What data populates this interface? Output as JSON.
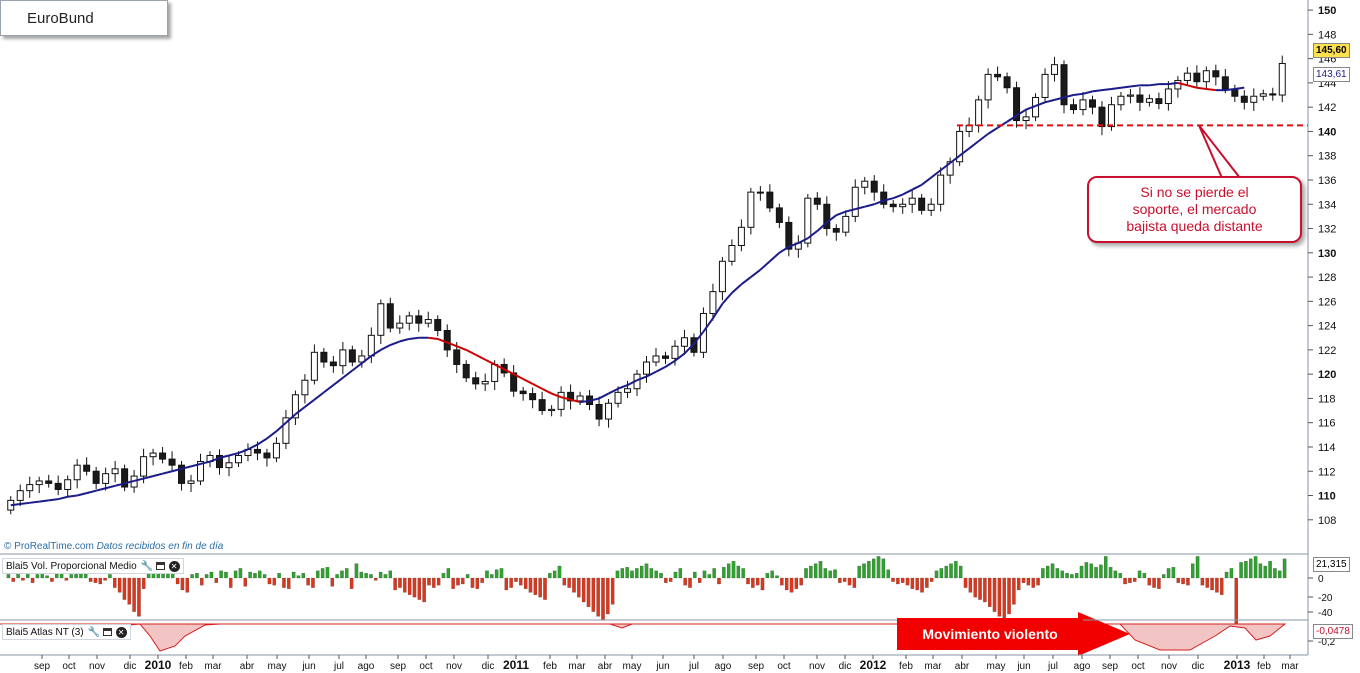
{
  "chart_data": [
    {
      "type": "candlestick",
      "title": "EuroBund",
      "yticks": [
        "108",
        "110",
        "112",
        "114",
        "116",
        "118",
        "120",
        "122",
        "124",
        "126",
        "128",
        "130",
        "132",
        "134",
        "136",
        "138",
        "140",
        "142",
        "144",
        "146",
        "148",
        "150"
      ],
      "major_yticks": [
        "110",
        "120",
        "130",
        "140",
        "150"
      ],
      "ylim": [
        106.5,
        150.5
      ],
      "last_price": "145,60",
      "average_value": "143,61",
      "support_level": 140.5,
      "annotation": "Si no se pierde el\nsoporte, el mercado\nbajista queda distante",
      "series": [
        {
          "name": "",
          "type": "candlestick",
          "closes": [
            109.6,
            110.4,
            110.9,
            111.2,
            111.0,
            110.5,
            111.3,
            112.5,
            112.0,
            111.0,
            111.8,
            112.2,
            110.7,
            111.6,
            113.2,
            113.5,
            113.0,
            112.5,
            111.0,
            111.2,
            112.8,
            113.3,
            112.3,
            112.7,
            113.3,
            113.8,
            113.5,
            113.1,
            114.3,
            116.4,
            118.3,
            119.5,
            121.8,
            121.0,
            120.7,
            122.0,
            121.0,
            121.5,
            123.2,
            125.8,
            123.8,
            124.2,
            124.8,
            124.2,
            124.5,
            123.6,
            122.0,
            120.8,
            119.7,
            119.2,
            119.4,
            120.8,
            120.1,
            118.6,
            118.4,
            117.9,
            117.0,
            117.1,
            118.5,
            117.8,
            118.2,
            117.5,
            116.3,
            117.6,
            118.5,
            118.8,
            120.0,
            121.0,
            121.5,
            121.3,
            122.3,
            123.0,
            121.8,
            125.0,
            126.8,
            129.3,
            130.6,
            132.1,
            135.0,
            135.0,
            133.7,
            132.5,
            130.3,
            130.8,
            134.5,
            134.0,
            132.0,
            131.7,
            133.0,
            135.4,
            135.9,
            135.0,
            134.0,
            133.8,
            134.0,
            134.5,
            133.5,
            134.0,
            136.4,
            137.5,
            140.0,
            140.5,
            142.6,
            144.7,
            144.5,
            143.6,
            140.9,
            141.2,
            142.8,
            144.7,
            145.5,
            142.2,
            141.8,
            142.6,
            142.0,
            140.4,
            142.2,
            142.9,
            143.0,
            142.4,
            142.7,
            142.3,
            143.5,
            144.2,
            144.8,
            144.1,
            145.0,
            144.5,
            143.5,
            142.9,
            142.4,
            142.9,
            143.1,
            143.0,
            145.6
          ]
        },
        {
          "name": "",
          "type": "moving_average",
          "values": [
            109.2,
            109.3,
            109.4,
            109.5,
            109.6,
            109.7,
            109.9,
            110.0,
            110.2,
            110.4,
            110.6,
            110.8,
            111.0,
            111.2,
            111.4,
            111.6,
            111.8,
            112.0,
            112.2,
            112.4,
            112.6,
            112.8,
            113.1,
            113.3,
            113.5,
            113.8,
            114.2,
            114.7,
            115.3,
            116.0,
            116.7,
            117.3,
            117.9,
            118.5,
            119.1,
            119.7,
            120.3,
            120.9,
            121.5,
            122.0,
            122.4,
            122.7,
            122.9,
            123.0,
            123.0,
            122.9,
            122.6,
            122.3,
            122.0,
            121.6,
            121.2,
            120.8,
            120.4,
            120.0,
            119.6,
            119.2,
            118.8,
            118.4,
            118.1,
            117.9,
            117.7,
            117.8,
            118.0,
            118.4,
            118.8,
            119.1,
            119.5,
            119.8,
            120.2,
            120.6,
            121.1,
            121.7,
            122.5,
            123.5,
            124.6,
            125.8,
            126.7,
            127.4,
            128.0,
            128.6,
            129.3,
            130.0,
            130.5,
            130.8,
            131.2,
            131.8,
            132.5,
            133.1,
            133.4,
            133.6,
            133.8,
            134.0,
            134.3,
            134.5,
            134.8,
            135.2,
            135.6,
            136.2,
            136.8,
            137.4,
            138.0,
            138.6,
            139.2,
            139.8,
            140.3,
            140.8,
            141.3,
            141.8,
            142.1,
            142.4,
            142.6,
            142.8,
            143.0,
            143.1,
            143.3,
            143.4,
            143.5,
            143.6,
            143.7,
            143.8,
            143.8,
            143.9,
            143.9,
            144.0,
            143.8,
            143.6,
            143.5,
            143.4,
            143.4,
            143.5,
            143.61
          ]
        }
      ]
    },
    {
      "type": "bar",
      "title": "Blai5 Vol. Proporcional Medio",
      "last_value": "21,315",
      "yticks": [
        "0",
        "-20",
        "-40"
      ],
      "values": [
        3,
        -3,
        4,
        -2,
        5,
        -4,
        3,
        6,
        2,
        -3,
        4,
        5,
        -2,
        3,
        6,
        4,
        5,
        -3,
        -4,
        -5,
        -2,
        3,
        -8,
        -12,
        -18,
        -22,
        -28,
        -32,
        -9,
        4,
        6,
        8,
        9,
        10,
        6,
        -5,
        -10,
        -12,
        3,
        4,
        -6,
        3,
        5,
        -4,
        6,
        5,
        -8,
        6,
        8,
        -7,
        5,
        4,
        6,
        3,
        -5,
        -6,
        4,
        -8,
        -9,
        5,
        2,
        4,
        -6,
        -8,
        6,
        8,
        9,
        -7,
        3,
        6,
        8,
        -9,
        12,
        5,
        4,
        3,
        -2,
        5,
        3,
        6,
        -10,
        -8,
        -12,
        -14,
        -16,
        -18,
        -20,
        -6,
        -8,
        -6,
        4,
        8,
        -9,
        -6,
        -5,
        3,
        -8,
        -9,
        -4,
        6,
        3,
        7,
        8,
        -10,
        -8,
        -3,
        -6,
        -9,
        -12,
        -14,
        -16,
        -18,
        4,
        6,
        10,
        -6,
        -8,
        -12,
        -16,
        -20,
        -24,
        -28,
        -32,
        -35,
        -30,
        -22,
        6,
        8,
        9,
        6,
        8,
        10,
        12,
        8,
        6,
        4,
        -4,
        -3,
        5,
        8,
        -6,
        -8,
        5,
        -4,
        6,
        3,
        8,
        -5,
        9,
        12,
        14,
        10,
        8,
        -5,
        -8,
        -6,
        -10,
        4,
        6,
        2,
        -6,
        -10,
        -12,
        -9,
        -6,
        8,
        10,
        12,
        14,
        8,
        6,
        7,
        -4,
        -3,
        -6,
        -8,
        10,
        12,
        14,
        16,
        18,
        16,
        7,
        -3,
        -5,
        -4,
        -6,
        -9,
        -10,
        -12,
        -8,
        -3,
        6,
        8,
        10,
        12,
        14,
        10,
        -8,
        -12,
        -16,
        -18,
        -20,
        -24,
        -28,
        -32,
        -35,
        -30,
        -22,
        -10,
        -4,
        -6,
        -8,
        -6,
        8,
        10,
        12,
        8,
        6,
        4,
        3,
        4,
        10,
        13,
        12,
        9,
        11,
        18,
        9,
        6,
        4,
        -5,
        -4,
        -3,
        6,
        4,
        -6,
        -8,
        -9,
        3,
        8,
        9,
        -4,
        -5,
        -6,
        12,
        18,
        -6,
        -8,
        -10,
        -12,
        -14,
        5,
        8,
        -40,
        13,
        14,
        16,
        18,
        12,
        10,
        14,
        8,
        6,
        16
      ]
    },
    {
      "type": "area",
      "title": "Blai5 Atlas NT (3)",
      "last_value": "-0,0478",
      "yticks": [
        "-0,2"
      ],
      "annotation": "Movimiento violento"
    }
  ],
  "x_axis": {
    "labels": [
      "sep",
      "oct",
      "nov",
      "dic",
      "2010",
      "feb",
      "mar",
      "abr",
      "may",
      "jun",
      "jul",
      "ago",
      "sep",
      "oct",
      "nov",
      "dic",
      "2011",
      "feb",
      "mar",
      "abr",
      "may",
      "jun",
      "jul",
      "ago",
      "sep",
      "oct",
      "nov",
      "dic",
      "2012",
      "feb",
      "mar",
      "abr",
      "may",
      "jun",
      "jul",
      "ago",
      "sep",
      "oct",
      "nov",
      "dic",
      "2013",
      "feb",
      "mar"
    ],
    "years": [
      "2010",
      "2011",
      "2012",
      "2013"
    ]
  },
  "watermark": {
    "brand": "© ProRealTime.com",
    "note": "Datos recibidos en fin de día"
  },
  "colors": {
    "up": "#ffffff",
    "down": "#1a1a1a",
    "ma_up": "#1b1b8a",
    "ma_down": "#cc0000",
    "bar_up": "#2fa12f",
    "bar_down": "#d9381e",
    "price_tag": "#ffe14d",
    "callout": "#c8102e"
  }
}
